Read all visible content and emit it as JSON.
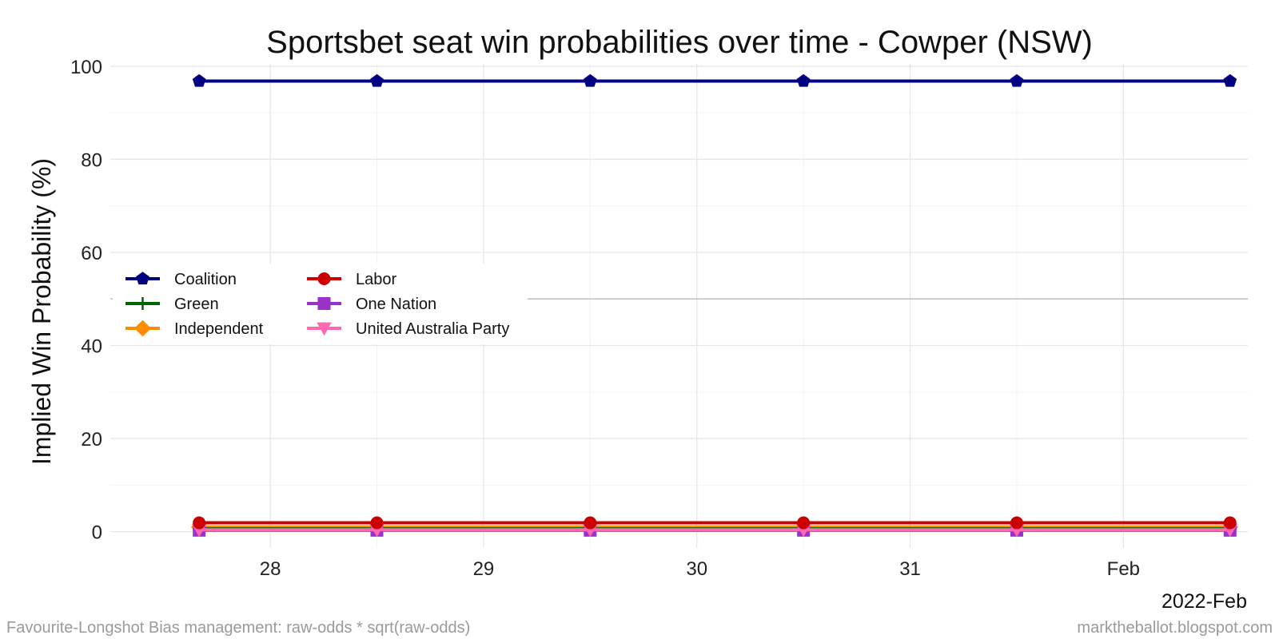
{
  "chart_data": {
    "type": "line",
    "title": "Sportsbet seat win probabilities over time - Cowper (NSW)",
    "ylabel": "Implied Win Probability (%)",
    "xlabel": "",
    "x_corner_label": "2022-Feb",
    "x": [
      "2022-01-27T16:00",
      "2022-01-28T12:00",
      "2022-01-29T12:00",
      "2022-01-30T12:00",
      "2022-01-31T12:00",
      "2022-02-01T12:00"
    ],
    "xlim": [
      "2022-01-27T06:00",
      "2022-02-01T14:00"
    ],
    "x_ticks": [
      {
        "date": "2022-01-28",
        "label": "28"
      },
      {
        "date": "2022-01-29",
        "label": "29"
      },
      {
        "date": "2022-01-30",
        "label": "30"
      },
      {
        "date": "2022-01-31",
        "label": "31"
      },
      {
        "date": "2022-02-01",
        "label": "Feb"
      }
    ],
    "ylim": [
      -3.5,
      100.5
    ],
    "y_ticks": [
      0,
      20,
      40,
      60,
      80,
      100
    ],
    "reference_line_y": 50,
    "grid": true,
    "legend_position": "left-middle",
    "series": [
      {
        "name": "Coalition",
        "color": "#000080",
        "marker": "pentagon",
        "values": [
          96.8,
          96.8,
          96.8,
          96.8,
          96.8,
          96.8
        ]
      },
      {
        "name": "Labor",
        "color": "#cc0000",
        "marker": "circle",
        "values": [
          1.9,
          1.9,
          1.9,
          1.9,
          1.9,
          1.9
        ]
      },
      {
        "name": "Green",
        "color": "#006400",
        "marker": "plus",
        "values": [
          0.6,
          0.6,
          0.6,
          0.6,
          0.6,
          0.6
        ]
      },
      {
        "name": "One Nation",
        "color": "#9932cc",
        "marker": "square",
        "values": [
          0.3,
          0.3,
          0.3,
          0.3,
          0.3,
          0.3
        ]
      },
      {
        "name": "Independent",
        "color": "#ff8c00",
        "marker": "diamond",
        "values": [
          1.0,
          1.0,
          1.0,
          1.0,
          1.0,
          1.0
        ]
      },
      {
        "name": "United Australia Party",
        "color": "#ff69b4",
        "marker": "triangle-down",
        "values": [
          0.4,
          0.4,
          0.4,
          0.4,
          0.4,
          0.4
        ]
      }
    ]
  },
  "caption_left": "Favourite-Longshot Bias management: raw-odds * sqrt(raw-odds)",
  "caption_right": "marktheballot.blogspot.com"
}
